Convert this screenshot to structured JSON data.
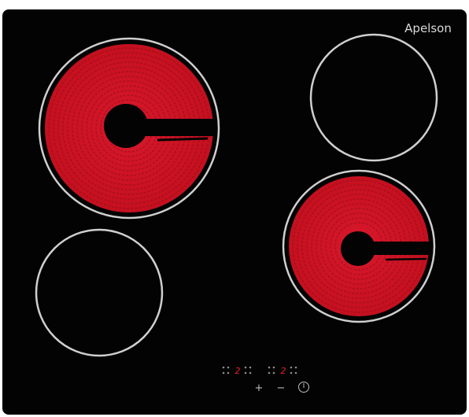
{
  "brand": "Apelson",
  "control_panel": {
    "displays": [
      "2",
      "2"
    ],
    "buttons": [
      "+",
      "−"
    ]
  }
}
